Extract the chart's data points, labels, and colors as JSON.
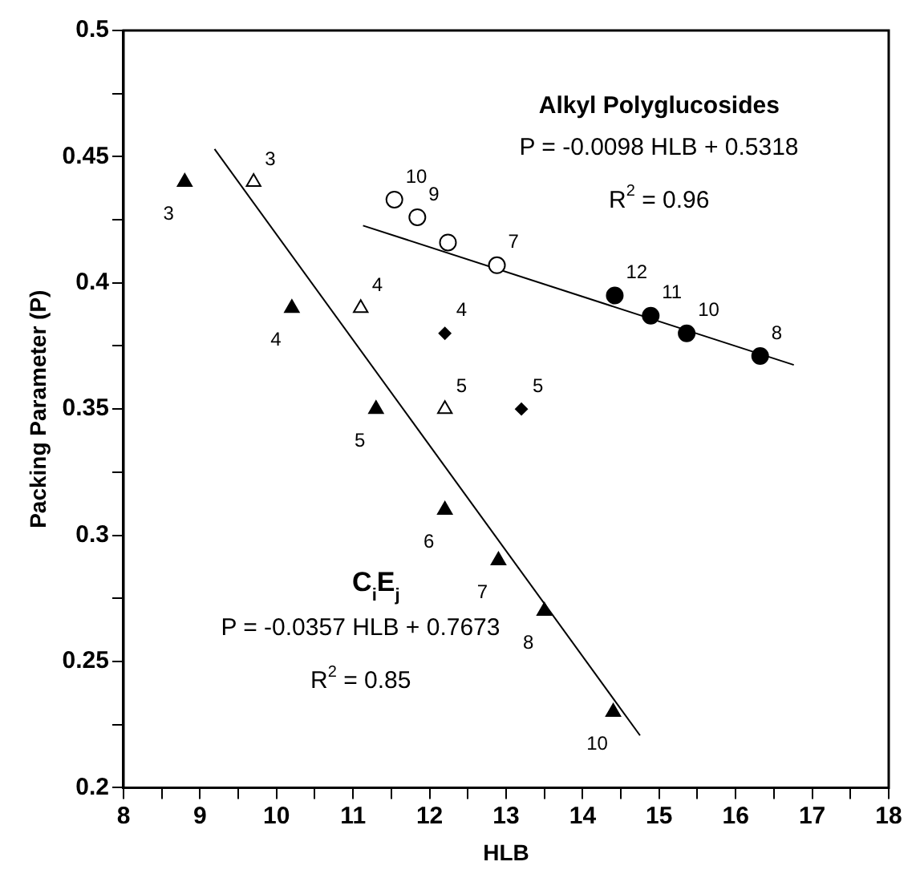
{
  "chart_data": {
    "type": "scatter",
    "xlabel": "HLB",
    "ylabel": "Packing Parameter (P)",
    "xlim": [
      8,
      18
    ],
    "ylim": [
      0.2,
      0.5
    ],
    "xticks": [
      8,
      {
        "value": 8.5,
        "label": null
      },
      9,
      {
        "value": 9.5,
        "label": null
      },
      10,
      {
        "value": 10.5,
        "label": null
      },
      11,
      {
        "value": 11.5,
        "label": null
      },
      12,
      {
        "value": 12.5,
        "label": null
      },
      13,
      {
        "value": 13.5,
        "label": null
      },
      14,
      {
        "value": 14.5,
        "label": null
      },
      15,
      {
        "value": 15.5,
        "label": null
      },
      16,
      {
        "value": 16.5,
        "label": null
      },
      17,
      {
        "value": 17.5,
        "label": null
      },
      18
    ],
    "yticks": [
      0.2,
      {
        "value": 0.225,
        "label": null
      },
      0.25,
      {
        "value": 0.275,
        "label": null
      },
      0.3,
      {
        "value": 0.325,
        "label": null
      },
      0.35,
      {
        "value": 0.375,
        "label": null
      },
      0.4,
      {
        "value": 0.425,
        "label": null
      },
      0.45,
      {
        "value": 0.475,
        "label": null
      },
      0.5
    ],
    "grid": false,
    "legend": false,
    "series": [
      {
        "marker": "triangle",
        "color": "#000000",
        "x": [
          8.8,
          10.2,
          11.3,
          12.2,
          12.9,
          13.5,
          14.4
        ],
        "values": [
          0.44,
          0.39,
          0.35,
          0.31,
          0.29,
          0.27,
          0.23
        ]
      },
      {
        "marker": "triangle",
        "color": "#ffffff",
        "x": [
          9.7,
          11.1,
          12.2
        ],
        "values": [
          0.44,
          0.39,
          0.35
        ]
      },
      {
        "marker": "diamond",
        "color": "#000000",
        "x": [
          12.2,
          13.2
        ],
        "values": [
          0.38,
          0.35
        ]
      },
      {
        "marker": "circle",
        "color": "#ffffff",
        "x": [
          11.54,
          11.84,
          12.24,
          12.88
        ],
        "values": [
          0.433,
          0.426,
          0.416,
          0.407
        ]
      },
      {
        "marker": "circle",
        "color": "#000000",
        "x": [
          14.42,
          14.89,
          15.36,
          16.32
        ],
        "values": [
          0.395,
          0.387,
          0.38,
          0.371
        ]
      },
      {
        "type": "line",
        "marker": "none",
        "color": "#000000",
        "x": [
          11.13,
          16.76
        ],
        "values": [
          0.4227,
          0.3675
        ]
      },
      {
        "type": "line",
        "marker": "none",
        "color": "#000000",
        "x": [
          9.19,
          14.75
        ],
        "values": [
          0.453,
          0.2207
        ]
      }
    ],
    "annotations": [
      "Alkyl Polyglucosides",
      "P = -0.0098 HLB + 0.5318",
      "R$^{2}$ = 0.96",
      "C$_{i}$E$_{j}$",
      "P = -0.0357 HLB + 0.7673",
      "R$^{2}$ = 0.85",
      {
        "text": "3",
        "x": 8.8,
        "y": 0.44
      },
      {
        "text": "4",
        "x": 10.2,
        "y": 0.39
      },
      {
        "text": "5",
        "x": 11.3,
        "y": 0.35
      },
      {
        "text": "6",
        "x": 12.2,
        "y": 0.31
      },
      {
        "text": "7",
        "x": 12.9,
        "y": 0.29
      },
      {
        "text": "8",
        "x": 13.5,
        "y": 0.27
      },
      {
        "text": "10",
        "x": 14.4,
        "y": 0.23
      },
      {
        "text": "3",
        "x": 9.7,
        "y": 0.44
      },
      {
        "text": "4",
        "x": 11.1,
        "y": 0.39
      },
      {
        "text": "5",
        "x": 12.2,
        "y": 0.35
      },
      {
        "text": "4",
        "x": 12.2,
        "y": 0.38
      },
      {
        "text": "5",
        "x": 13.2,
        "y": 0.35
      },
      {
        "text": "10",
        "x": 11.54,
        "y": 0.433
      },
      {
        "text": "9",
        "x": 11.84,
        "y": 0.426
      },
      {
        "text": "7",
        "x": 12.88,
        "y": 0.407
      },
      {
        "text": "12",
        "x": 14.42,
        "y": 0.395
      },
      {
        "text": "11",
        "x": 14.89,
        "y": 0.387
      },
      {
        "text": "10",
        "x": 15.36,
        "y": 0.38
      },
      {
        "text": "8",
        "x": 16.32,
        "y": 0.371
      }
    ]
  }
}
